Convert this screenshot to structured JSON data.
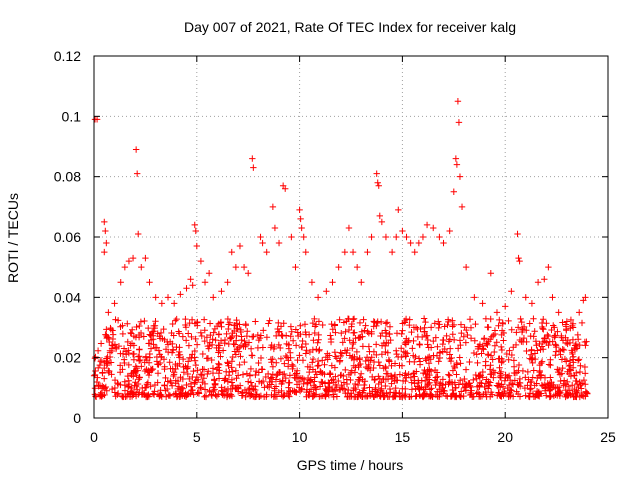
{
  "chart_data": {
    "type": "scatter",
    "title": "Day 007 of 2021, Rate Of TEC Index for receiver kalg",
    "xlabel": "GPS time / hours",
    "ylabel": "ROTI / TECUs",
    "xlim": [
      0,
      25
    ],
    "ylim": [
      0,
      0.12
    ],
    "x_ticks": [
      0,
      5,
      10,
      15,
      20,
      25
    ],
    "x_tick_labels": [
      "0",
      "5",
      "10",
      "15",
      "20",
      "25"
    ],
    "y_ticks": [
      0,
      0.02,
      0.04,
      0.06,
      0.08,
      0.1,
      0.12
    ],
    "y_tick_labels": [
      "0",
      "0.02",
      "0.04",
      "0.06",
      "0.08",
      "0.1",
      "0.12"
    ],
    "grid": true,
    "marker": "+",
    "color": "#ff0000",
    "series": [
      {
        "name": "ROTI",
        "points": [
          [
            0.05,
            0.099
          ],
          [
            0.15,
            0.099
          ],
          [
            0.5,
            0.065
          ],
          [
            0.5,
            0.055
          ],
          [
            0.55,
            0.062
          ],
          [
            0.6,
            0.058
          ],
          [
            0.7,
            0.035
          ],
          [
            1.0,
            0.038
          ],
          [
            1.3,
            0.045
          ],
          [
            1.5,
            0.05
          ],
          [
            1.7,
            0.052
          ],
          [
            1.9,
            0.053
          ],
          [
            2.05,
            0.089
          ],
          [
            2.1,
            0.081
          ],
          [
            2.15,
            0.061
          ],
          [
            2.3,
            0.05
          ],
          [
            2.5,
            0.053
          ],
          [
            2.7,
            0.045
          ],
          [
            3.0,
            0.04
          ],
          [
            3.3,
            0.038
          ],
          [
            3.6,
            0.04
          ],
          [
            3.9,
            0.038
          ],
          [
            4.2,
            0.041
          ],
          [
            4.5,
            0.043
          ],
          [
            4.7,
            0.046
          ],
          [
            4.8,
            0.044
          ],
          [
            4.9,
            0.064
          ],
          [
            4.95,
            0.062
          ],
          [
            5.0,
            0.057
          ],
          [
            5.2,
            0.052
          ],
          [
            5.4,
            0.045
          ],
          [
            5.6,
            0.048
          ],
          [
            5.8,
            0.04
          ],
          [
            6.2,
            0.042
          ],
          [
            6.5,
            0.045
          ],
          [
            6.7,
            0.055
          ],
          [
            6.9,
            0.05
          ],
          [
            7.1,
            0.057
          ],
          [
            7.3,
            0.05
          ],
          [
            7.5,
            0.048
          ],
          [
            7.7,
            0.086
          ],
          [
            7.75,
            0.083
          ],
          [
            8.1,
            0.06
          ],
          [
            8.2,
            0.058
          ],
          [
            8.4,
            0.055
          ],
          [
            8.7,
            0.07
          ],
          [
            8.8,
            0.063
          ],
          [
            9.0,
            0.058
          ],
          [
            9.2,
            0.077
          ],
          [
            9.3,
            0.076
          ],
          [
            9.6,
            0.06
          ],
          [
            9.8,
            0.05
          ],
          [
            10.0,
            0.069
          ],
          [
            10.05,
            0.066
          ],
          [
            10.1,
            0.063
          ],
          [
            10.2,
            0.06
          ],
          [
            10.3,
            0.055
          ],
          [
            10.6,
            0.045
          ],
          [
            10.9,
            0.04
          ],
          [
            11.3,
            0.042
          ],
          [
            11.6,
            0.045
          ],
          [
            11.9,
            0.05
          ],
          [
            12.2,
            0.055
          ],
          [
            12.4,
            0.063
          ],
          [
            12.6,
            0.055
          ],
          [
            12.8,
            0.05
          ],
          [
            13.0,
            0.045
          ],
          [
            13.3,
            0.055
          ],
          [
            13.5,
            0.06
          ],
          [
            13.75,
            0.081
          ],
          [
            13.8,
            0.078
          ],
          [
            13.85,
            0.077
          ],
          [
            13.9,
            0.067
          ],
          [
            14.0,
            0.065
          ],
          [
            14.2,
            0.06
          ],
          [
            14.5,
            0.055
          ],
          [
            14.7,
            0.06
          ],
          [
            14.8,
            0.069
          ],
          [
            15.0,
            0.062
          ],
          [
            15.2,
            0.06
          ],
          [
            15.4,
            0.058
          ],
          [
            15.6,
            0.055
          ],
          [
            15.8,
            0.058
          ],
          [
            16.0,
            0.06
          ],
          [
            16.2,
            0.064
          ],
          [
            16.5,
            0.063
          ],
          [
            16.8,
            0.06
          ],
          [
            17.0,
            0.058
          ],
          [
            17.3,
            0.062
          ],
          [
            17.5,
            0.075
          ],
          [
            17.6,
            0.086
          ],
          [
            17.65,
            0.084
          ],
          [
            17.7,
            0.105
          ],
          [
            17.75,
            0.098
          ],
          [
            17.8,
            0.08
          ],
          [
            17.9,
            0.07
          ],
          [
            18.1,
            0.05
          ],
          [
            18.5,
            0.04
          ],
          [
            18.9,
            0.038
          ],
          [
            19.3,
            0.048
          ],
          [
            19.6,
            0.035
          ],
          [
            20.0,
            0.037
          ],
          [
            20.3,
            0.042
          ],
          [
            20.6,
            0.061
          ],
          [
            20.65,
            0.053
          ],
          [
            20.7,
            0.052
          ],
          [
            21.0,
            0.04
          ],
          [
            21.3,
            0.038
          ],
          [
            21.6,
            0.045
          ],
          [
            21.9,
            0.046
          ],
          [
            22.1,
            0.05
          ],
          [
            22.3,
            0.04
          ],
          [
            22.6,
            0.035
          ],
          [
            23.0,
            0.032
          ],
          [
            23.3,
            0.03
          ],
          [
            23.6,
            0.035
          ],
          [
            23.8,
            0.039
          ],
          [
            23.9,
            0.04
          ]
        ]
      }
    ]
  }
}
